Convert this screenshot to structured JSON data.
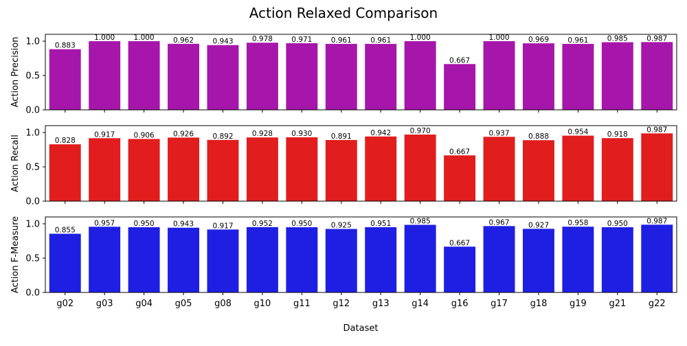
{
  "chart_data": {
    "type": "bar",
    "title": "Action Relaxed Comparison",
    "xlabel": "Dataset",
    "categories": [
      "g02",
      "g03",
      "g04",
      "g05",
      "g08",
      "g10",
      "g11",
      "g12",
      "g13",
      "g14",
      "g16",
      "g17",
      "g18",
      "g19",
      "g21",
      "g22"
    ],
    "ylim": [
      0,
      1.1
    ],
    "yticks": [
      "0.0",
      "0.5",
      "1.0"
    ],
    "grid": false,
    "legend": "none",
    "panels": [
      {
        "ylabel": "Action Precision",
        "color": "#a716aa",
        "values": [
          0.883,
          1.0,
          1.0,
          0.962,
          0.943,
          0.978,
          0.971,
          0.961,
          0.961,
          1.0,
          0.667,
          1.0,
          0.969,
          0.961,
          0.985,
          0.987
        ],
        "labels": [
          "0.883",
          "1.000",
          "1.000",
          "0.962",
          "0.943",
          "0.978",
          "0.971",
          "0.961",
          "0.961",
          "1.000",
          "0.667",
          "1.000",
          "0.969",
          "0.961",
          "0.985",
          "0.987"
        ]
      },
      {
        "ylabel": "Action Recall",
        "color": "#e11d1d",
        "values": [
          0.828,
          0.917,
          0.906,
          0.926,
          0.892,
          0.928,
          0.93,
          0.891,
          0.942,
          0.97,
          0.667,
          0.937,
          0.888,
          0.954,
          0.918,
          0.987
        ],
        "labels": [
          "0.828",
          "0.917",
          "0.906",
          "0.926",
          "0.892",
          "0.928",
          "0.930",
          "0.891",
          "0.942",
          "0.970",
          "0.667",
          "0.937",
          "0.888",
          "0.954",
          "0.918",
          "0.987"
        ]
      },
      {
        "ylabel": "Action F-Measure",
        "color": "#1f1fe3",
        "values": [
          0.855,
          0.957,
          0.95,
          0.943,
          0.917,
          0.952,
          0.95,
          0.925,
          0.951,
          0.985,
          0.667,
          0.967,
          0.927,
          0.958,
          0.95,
          0.987
        ],
        "labels": [
          "0.855",
          "0.957",
          "0.950",
          "0.943",
          "0.917",
          "0.952",
          "0.950",
          "0.925",
          "0.951",
          "0.985",
          "0.667",
          "0.967",
          "0.927",
          "0.958",
          "0.950",
          "0.987"
        ]
      }
    ]
  }
}
